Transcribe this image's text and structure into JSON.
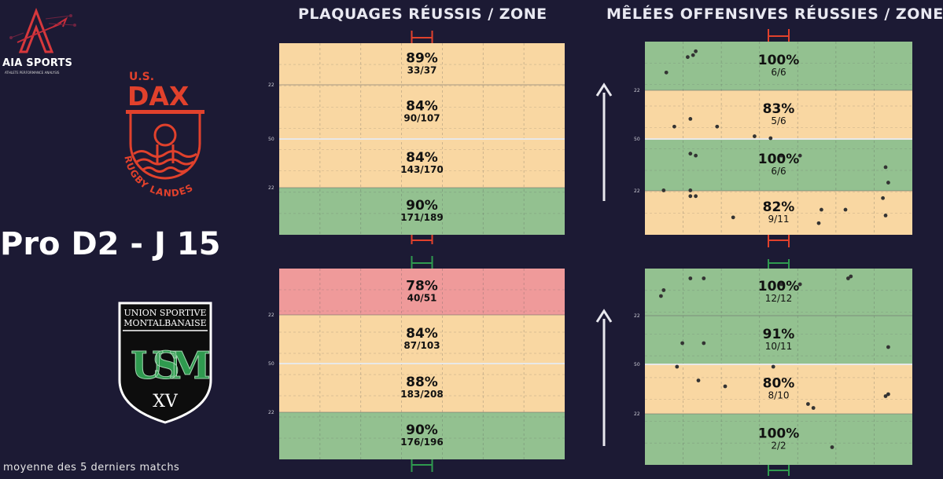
{
  "brand": {
    "name": "AIA SPORTS",
    "tagline": "ATHLETE PERFORMANCE ANALYSIS"
  },
  "teams": {
    "top": {
      "line1": "U.S.",
      "line2": "DAX",
      "arc": "RUGBY LANDES",
      "color": "#e1412c"
    },
    "bottom": {
      "line1": "UNION SPORTIVE",
      "line2": "MONTALBANAISE",
      "monogram": "USM",
      "roman": "XV",
      "color": "#2f9a4f"
    }
  },
  "match_title": "Pro D2 - J 15",
  "footer": "moyenne des 5 derniers matchs",
  "colors": {
    "background": "#1c1a34",
    "good": "#93c190",
    "medium": "#f9d7a2",
    "bad": "#ef9a9a",
    "dax": "#e1412c",
    "usm": "#2f9a4f"
  },
  "line_labels": {
    "l22": "22",
    "l50": "50"
  },
  "chart_data": [
    {
      "type": "table",
      "id": "tackles-dax",
      "title": "PLAQUAGES RÉUSSIS / ZONE",
      "team": "U.S. Dax",
      "zones": [
        {
          "pct": "89%",
          "made": 33,
          "attempts": 37,
          "frac": "33/37",
          "rating": "medium"
        },
        {
          "pct": "84%",
          "made": 90,
          "attempts": 107,
          "frac": "90/107",
          "rating": "medium"
        },
        {
          "pct": "84%",
          "made": 143,
          "attempts": 170,
          "frac": "143/170",
          "rating": "medium"
        },
        {
          "pct": "90%",
          "made": 171,
          "attempts": 189,
          "frac": "171/189",
          "rating": "good"
        }
      ]
    },
    {
      "type": "scatter",
      "id": "scrums-dax",
      "title": "MÊLÉES OFFENSIVES RÉUSSIES / ZONE",
      "team": "U.S. Dax",
      "direction": "up",
      "zones": [
        {
          "pct": "100%",
          "made": 6,
          "attempts": 6,
          "frac": "6/6",
          "rating": "good"
        },
        {
          "pct": "83%",
          "made": 5,
          "attempts": 6,
          "frac": "5/6",
          "rating": "medium"
        },
        {
          "pct": "100%",
          "made": 6,
          "attempts": 6,
          "frac": "6/6",
          "rating": "good"
        },
        {
          "pct": "82%",
          "made": 9,
          "attempts": 11,
          "frac": "9/11",
          "rating": "medium"
        }
      ],
      "points": [
        [
          0.08,
          0.84
        ],
        [
          0.16,
          0.92
        ],
        [
          0.18,
          0.93
        ],
        [
          0.19,
          0.95
        ],
        [
          0.11,
          0.56
        ],
        [
          0.17,
          0.6
        ],
        [
          0.27,
          0.56
        ],
        [
          0.41,
          0.51
        ],
        [
          0.47,
          0.5
        ],
        [
          0.17,
          0.42
        ],
        [
          0.19,
          0.41
        ],
        [
          0.51,
          0.41
        ],
        [
          0.58,
          0.41
        ],
        [
          0.9,
          0.35
        ],
        [
          0.91,
          0.27
        ],
        [
          0.07,
          0.23
        ],
        [
          0.17,
          0.23
        ],
        [
          0.17,
          0.2
        ],
        [
          0.19,
          0.2
        ],
        [
          0.33,
          0.09
        ],
        [
          0.65,
          0.06
        ],
        [
          0.66,
          0.13
        ],
        [
          0.75,
          0.13
        ],
        [
          0.89,
          0.19
        ],
        [
          0.9,
          0.1
        ]
      ]
    },
    {
      "type": "table",
      "id": "tackles-usm",
      "title": "PLAQUAGES RÉUSSIS / ZONE",
      "team": "US Montalbanaise",
      "zones": [
        {
          "pct": "78%",
          "made": 40,
          "attempts": 51,
          "frac": "40/51",
          "rating": "bad"
        },
        {
          "pct": "84%",
          "made": 87,
          "attempts": 103,
          "frac": "87/103",
          "rating": "medium"
        },
        {
          "pct": "88%",
          "made": 183,
          "attempts": 208,
          "frac": "183/208",
          "rating": "medium"
        },
        {
          "pct": "90%",
          "made": 176,
          "attempts": 196,
          "frac": "176/196",
          "rating": "good"
        }
      ]
    },
    {
      "type": "scatter",
      "id": "scrums-usm",
      "title": "MÊLÉES OFFENSIVES RÉUSSIES / ZONE",
      "team": "US Montalbanaise",
      "direction": "up",
      "zones": [
        {
          "pct": "100%",
          "made": 12,
          "attempts": 12,
          "frac": "12/12",
          "rating": "good"
        },
        {
          "pct": "91%",
          "made": 10,
          "attempts": 11,
          "frac": "10/11",
          "rating": "good"
        },
        {
          "pct": "80%",
          "made": 8,
          "attempts": 10,
          "frac": "8/10",
          "rating": "medium"
        },
        {
          "pct": "100%",
          "made": 2,
          "attempts": 2,
          "frac": "2/2",
          "rating": "good"
        }
      ],
      "points": [
        [
          0.06,
          0.86
        ],
        [
          0.07,
          0.89
        ],
        [
          0.17,
          0.95
        ],
        [
          0.22,
          0.95
        ],
        [
          0.51,
          0.92
        ],
        [
          0.58,
          0.92
        ],
        [
          0.76,
          0.95
        ],
        [
          0.77,
          0.96
        ],
        [
          0.14,
          0.62
        ],
        [
          0.22,
          0.62
        ],
        [
          0.91,
          0.6
        ],
        [
          0.12,
          0.5
        ],
        [
          0.48,
          0.5
        ],
        [
          0.2,
          0.43
        ],
        [
          0.3,
          0.4
        ],
        [
          0.61,
          0.31
        ],
        [
          0.63,
          0.29
        ],
        [
          0.9,
          0.35
        ],
        [
          0.91,
          0.36
        ],
        [
          0.7,
          0.09
        ]
      ]
    }
  ]
}
